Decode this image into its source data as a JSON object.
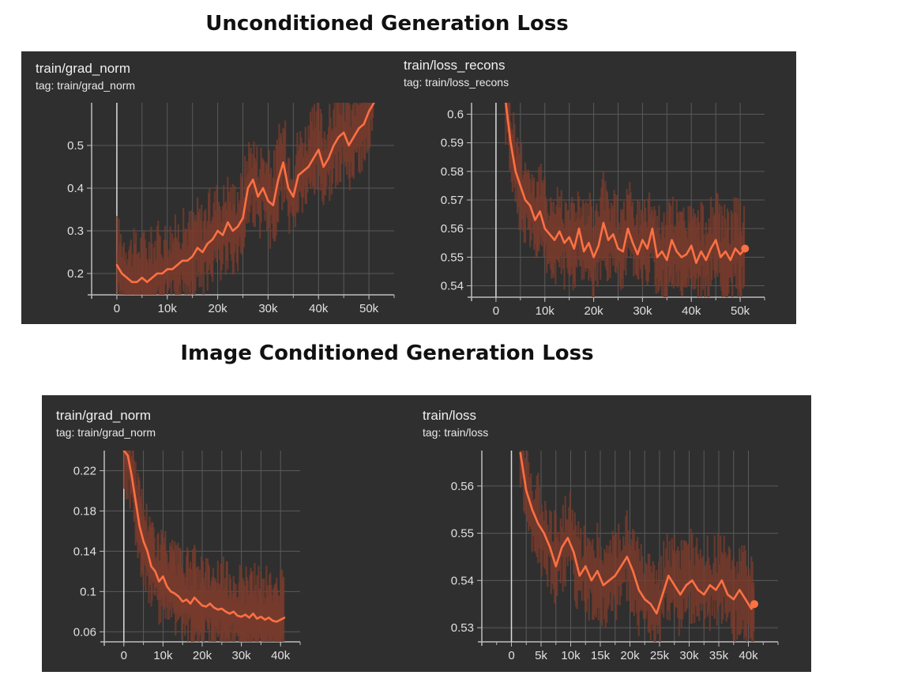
{
  "titles": {
    "top": "Unconditioned Generation Loss",
    "bottom": "Image Conditioned Generation Loss"
  },
  "colors": {
    "panel": "#2f2f2f",
    "line": "#ff7043",
    "band": "#7a3b2c",
    "grid": "#5a5a5a",
    "axis": "#bdbdbd",
    "tick_text": "#e0e0e0"
  },
  "chart_data": [
    {
      "id": "c1",
      "type": "line",
      "title": "train/grad_norm",
      "tag": "tag: train/grad_norm",
      "xlim": [
        -5000,
        55000
      ],
      "ylim": [
        0.15,
        0.6
      ],
      "xticks": [
        0,
        10000,
        20000,
        30000,
        40000,
        50000
      ],
      "xticklabels": [
        "0",
        "10k",
        "20k",
        "30k",
        "40k",
        "50k"
      ],
      "yticks": [
        0.2,
        0.3,
        0.4,
        0.5
      ],
      "yticklabels": [
        "0.2",
        "0.3",
        "0.4",
        "0.5"
      ],
      "grid": true,
      "series": [
        {
          "x": [
            0,
            1000,
            2000,
            3000,
            4000,
            5000,
            6000,
            7000,
            8000,
            9000,
            10000,
            11000,
            12000,
            13000,
            14000,
            15000,
            16000,
            17000,
            18000,
            19000,
            20000,
            21000,
            22000,
            23000,
            24000,
            25000,
            26000,
            27000,
            28000,
            29000,
            30000,
            31000,
            32000,
            33000,
            34000,
            35000,
            36000,
            37000,
            38000,
            39000,
            40000,
            41000,
            42000,
            43000,
            44000,
            45000,
            46000,
            47000,
            48000,
            49000,
            50000,
            51000
          ],
          "y": [
            0.22,
            0.2,
            0.19,
            0.18,
            0.18,
            0.19,
            0.18,
            0.19,
            0.2,
            0.2,
            0.21,
            0.21,
            0.22,
            0.23,
            0.23,
            0.24,
            0.26,
            0.25,
            0.27,
            0.28,
            0.3,
            0.29,
            0.32,
            0.3,
            0.31,
            0.33,
            0.4,
            0.42,
            0.38,
            0.4,
            0.37,
            0.36,
            0.42,
            0.46,
            0.4,
            0.38,
            0.43,
            0.44,
            0.45,
            0.47,
            0.49,
            0.45,
            0.47,
            0.5,
            0.52,
            0.53,
            0.5,
            0.52,
            0.54,
            0.55,
            0.58,
            0.6
          ]
        }
      ]
    },
    {
      "id": "c2",
      "type": "line",
      "title": "train/loss_recons",
      "tag": "tag: train/loss_recons",
      "xlim": [
        -5000,
        55000
      ],
      "ylim": [
        0.536,
        0.604
      ],
      "xticks": [
        0,
        10000,
        20000,
        30000,
        40000,
        50000
      ],
      "xticklabels": [
        "0",
        "10k",
        "20k",
        "30k",
        "40k",
        "50k"
      ],
      "yticks": [
        0.54,
        0.55,
        0.56,
        0.57,
        0.58,
        0.59,
        0.6
      ],
      "yticklabels": [
        "0.54",
        "0.55",
        "0.56",
        "0.57",
        "0.58",
        "0.59",
        "0.6"
      ],
      "grid": true,
      "series": [
        {
          "x": [
            2000,
            3000,
            4000,
            5000,
            6000,
            7000,
            8000,
            9000,
            10000,
            11000,
            12000,
            13000,
            14000,
            15000,
            16000,
            17000,
            18000,
            19000,
            20000,
            21000,
            22000,
            23000,
            24000,
            25000,
            26000,
            27000,
            28000,
            29000,
            30000,
            31000,
            32000,
            33000,
            34000,
            35000,
            36000,
            37000,
            38000,
            39000,
            40000,
            41000,
            42000,
            43000,
            44000,
            45000,
            46000,
            47000,
            48000,
            49000,
            50000,
            51000
          ],
          "y": [
            0.604,
            0.59,
            0.58,
            0.575,
            0.57,
            0.568,
            0.563,
            0.566,
            0.56,
            0.558,
            0.556,
            0.559,
            0.555,
            0.557,
            0.553,
            0.56,
            0.552,
            0.555,
            0.55,
            0.554,
            0.562,
            0.556,
            0.558,
            0.553,
            0.552,
            0.56,
            0.555,
            0.551,
            0.556,
            0.553,
            0.56,
            0.55,
            0.552,
            0.549,
            0.556,
            0.552,
            0.55,
            0.551,
            0.554,
            0.548,
            0.552,
            0.549,
            0.553,
            0.556,
            0.55,
            0.552,
            0.549,
            0.553,
            0.551,
            0.553
          ]
        }
      ]
    },
    {
      "id": "c3",
      "type": "line",
      "title": "train/grad_norm",
      "tag": "tag: train/grad_norm",
      "xlim": [
        -5000,
        45000
      ],
      "ylim": [
        0.05,
        0.24
      ],
      "xticks": [
        0,
        10000,
        20000,
        30000,
        40000
      ],
      "xticklabels": [
        "0",
        "10k",
        "20k",
        "30k",
        "40k"
      ],
      "yticks": [
        0.06,
        0.1,
        0.14,
        0.18,
        0.22
      ],
      "yticklabels": [
        "0.06",
        "0.1",
        "0.14",
        "0.18",
        "0.22"
      ],
      "grid": true,
      "series": [
        {
          "x": [
            0,
            1000,
            2000,
            3000,
            4000,
            5000,
            6000,
            7000,
            8000,
            9000,
            10000,
            11000,
            12000,
            13000,
            14000,
            15000,
            16000,
            17000,
            18000,
            19000,
            20000,
            21000,
            22000,
            23000,
            24000,
            25000,
            26000,
            27000,
            28000,
            29000,
            30000,
            31000,
            32000,
            33000,
            34000,
            35000,
            36000,
            37000,
            38000,
            39000,
            40000,
            41000
          ],
          "y": [
            0.24,
            0.235,
            0.215,
            0.19,
            0.165,
            0.15,
            0.14,
            0.125,
            0.12,
            0.11,
            0.115,
            0.105,
            0.1,
            0.098,
            0.095,
            0.09,
            0.092,
            0.088,
            0.094,
            0.09,
            0.086,
            0.085,
            0.088,
            0.084,
            0.082,
            0.083,
            0.08,
            0.078,
            0.08,
            0.076,
            0.075,
            0.077,
            0.074,
            0.078,
            0.073,
            0.075,
            0.072,
            0.074,
            0.071,
            0.07,
            0.072,
            0.074
          ]
        }
      ]
    },
    {
      "id": "c4",
      "type": "line",
      "title": "train/loss",
      "tag": "tag: train/loss",
      "xlim": [
        -5000,
        45000
      ],
      "ylim": [
        0.527,
        0.5675
      ],
      "xticks": [
        0,
        5000,
        10000,
        15000,
        20000,
        25000,
        30000,
        35000,
        40000
      ],
      "xticklabels": [
        "0",
        "5k",
        "10k",
        "15k",
        "20k",
        "25k",
        "30k",
        "35k",
        "40k"
      ],
      "yticks": [
        0.53,
        0.54,
        0.55,
        0.56
      ],
      "yticklabels": [
        "0.53",
        "0.54",
        "0.55",
        "0.56"
      ],
      "grid": true,
      "series": [
        {
          "x": [
            1500,
            2500,
            3500,
            4500,
            5500,
            6500,
            7500,
            8500,
            9500,
            10500,
            11500,
            12500,
            13500,
            14500,
            15500,
            16500,
            17500,
            18500,
            19500,
            20500,
            21500,
            22500,
            23500,
            24500,
            25500,
            26500,
            27500,
            28500,
            29500,
            30500,
            31500,
            32500,
            33500,
            34500,
            35500,
            36500,
            37500,
            38500,
            39500,
            40500,
            41000
          ],
          "y": [
            0.567,
            0.559,
            0.555,
            0.552,
            0.55,
            0.547,
            0.543,
            0.547,
            0.549,
            0.546,
            0.541,
            0.543,
            0.54,
            0.542,
            0.539,
            0.54,
            0.541,
            0.543,
            0.545,
            0.542,
            0.538,
            0.536,
            0.535,
            0.533,
            0.537,
            0.541,
            0.539,
            0.537,
            0.539,
            0.54,
            0.538,
            0.537,
            0.539,
            0.538,
            0.54,
            0.537,
            0.536,
            0.538,
            0.536,
            0.534,
            0.535
          ]
        }
      ]
    }
  ]
}
